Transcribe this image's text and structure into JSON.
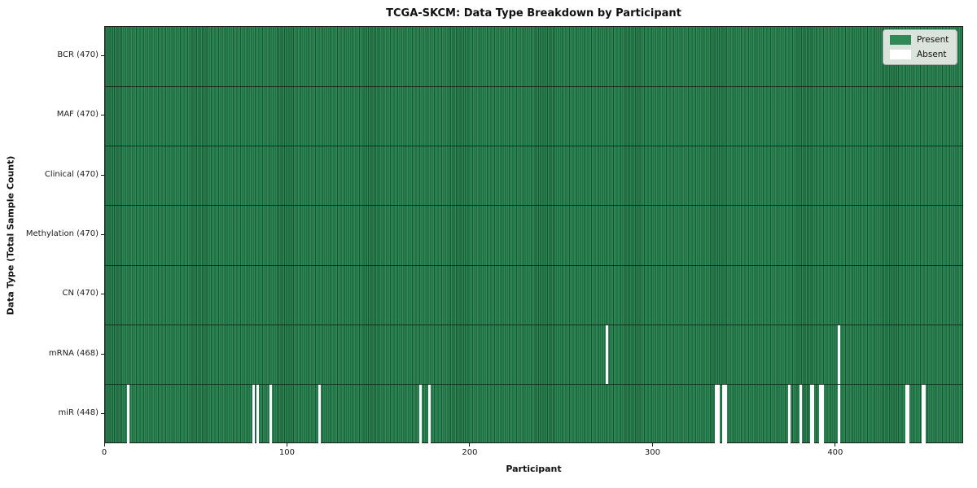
{
  "chart_data": {
    "type": "heatmap",
    "title": "TCGA-SKCM: Data Type Breakdown by Participant",
    "xlabel": "Participant",
    "ylabel": "Data Type (Total Sample Count)",
    "n_participants": 470,
    "xlim": [
      0,
      470
    ],
    "x_ticks": [
      0,
      100,
      200,
      300,
      400
    ],
    "grid": false,
    "legend": {
      "position": "upper right",
      "entries": [
        {
          "label": "Present",
          "color": "#2e8b57"
        },
        {
          "label": "Absent",
          "color": "#ffffff"
        }
      ]
    },
    "colors": {
      "present": "#2e8b57",
      "absent": "#ffffff",
      "column_edge": "#0a2616",
      "row_separator": "#0a190f",
      "spine": "#1c1c1c",
      "legend_background": "#eaede9"
    },
    "rows": [
      {
        "label": "BCR (470)",
        "data_type": "BCR",
        "present_count": 470,
        "absent_participants": []
      },
      {
        "label": "MAF (470)",
        "data_type": "MAF",
        "present_count": 470,
        "absent_participants": []
      },
      {
        "label": "Clinical (470)",
        "data_type": "Clinical",
        "present_count": 470,
        "absent_participants": []
      },
      {
        "label": "Methylation (470)",
        "data_type": "Methylation",
        "present_count": 470,
        "absent_participants": []
      },
      {
        "label": "CN (470)",
        "data_type": "CN",
        "present_count": 470,
        "absent_participants": []
      },
      {
        "label": "mRNA (468)",
        "data_type": "mRNA",
        "present_count": 468,
        "absent_participants": [
          274,
          401
        ]
      },
      {
        "label": "miR (448)",
        "data_type": "miR",
        "present_count": 448,
        "absent_participants": [
          12,
          81,
          83,
          90,
          117,
          172,
          177,
          334,
          335,
          338,
          339,
          374,
          380,
          386,
          387,
          391,
          392,
          401,
          438,
          439,
          447,
          448
        ]
      }
    ]
  }
}
